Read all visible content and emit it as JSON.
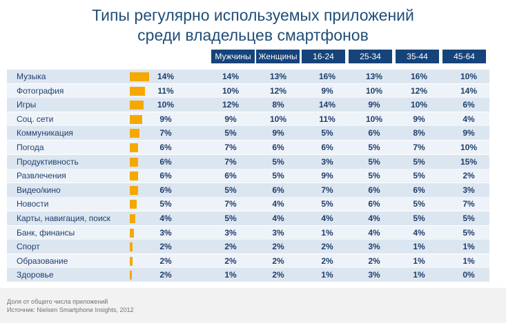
{
  "title_line1": "Типы регулярно используемых приложений",
  "title_line2": "среди владельцев смартфонов",
  "footnote_line1": "Доля от общего числа приложений",
  "footnote_line2": "Источник: Nielsen Smartphone Insights, 2012",
  "colors": {
    "bar": "#f5a800",
    "header": "#16437a",
    "text": "#1f3e6b"
  },
  "chart_data": {
    "type": "table",
    "title": "Типы регулярно используемых приложений среди владельцев смартфонов",
    "columns": [
      "Мужчины",
      "Женщины",
      "16-24",
      "25-34",
      "35-44",
      "45-64"
    ],
    "rows": [
      {
        "category": "Музыка",
        "total": "14%",
        "total_value": 14,
        "values": [
          "14%",
          "13%",
          "16%",
          "13%",
          "16%",
          "10%"
        ]
      },
      {
        "category": "Фотография",
        "total": "11%",
        "total_value": 11,
        "values": [
          "10%",
          "12%",
          "9%",
          "10%",
          "12%",
          "14%"
        ]
      },
      {
        "category": "Игры",
        "total": "10%",
        "total_value": 10,
        "values": [
          "12%",
          "8%",
          "14%",
          "9%",
          "10%",
          "6%"
        ]
      },
      {
        "category": "Соц. сети",
        "total": "9%",
        "total_value": 9,
        "values": [
          "9%",
          "10%",
          "11%",
          "10%",
          "9%",
          "4%"
        ]
      },
      {
        "category": "Коммуникация",
        "total": "7%",
        "total_value": 7,
        "values": [
          "5%",
          "9%",
          "5%",
          "6%",
          "8%",
          "9%"
        ]
      },
      {
        "category": "Погода",
        "total": "6%",
        "total_value": 6,
        "values": [
          "7%",
          "6%",
          "6%",
          "5%",
          "7%",
          "10%"
        ]
      },
      {
        "category": "Продуктивность",
        "total": "6%",
        "total_value": 6,
        "values": [
          "7%",
          "5%",
          "3%",
          "5%",
          "5%",
          "15%"
        ]
      },
      {
        "category": "Развлечения",
        "total": "6%",
        "total_value": 6,
        "values": [
          "6%",
          "5%",
          "9%",
          "5%",
          "5%",
          "2%"
        ]
      },
      {
        "category": "Видео/кино",
        "total": "6%",
        "total_value": 6,
        "values": [
          "5%",
          "6%",
          "7%",
          "6%",
          "6%",
          "3%"
        ]
      },
      {
        "category": "Новости",
        "total": "5%",
        "total_value": 5,
        "values": [
          "7%",
          "4%",
          "5%",
          "6%",
          "5%",
          "7%"
        ]
      },
      {
        "category": "Карты, навигация, поиск",
        "total": "4%",
        "total_value": 4,
        "values": [
          "5%",
          "4%",
          "4%",
          "4%",
          "5%",
          "5%"
        ]
      },
      {
        "category": "Банк, финансы",
        "total": "3%",
        "total_value": 3,
        "values": [
          "3%",
          "3%",
          "1%",
          "4%",
          "4%",
          "5%"
        ]
      },
      {
        "category": "Спорт",
        "total": "2%",
        "total_value": 2,
        "values": [
          "2%",
          "2%",
          "2%",
          "3%",
          "1%",
          "1%"
        ]
      },
      {
        "category": "Образование",
        "total": "2%",
        "total_value": 2,
        "values": [
          "2%",
          "2%",
          "2%",
          "2%",
          "1%",
          "1%"
        ]
      },
      {
        "category": "Здоровье",
        "total": "2%",
        "total_value": 1.5,
        "values": [
          "1%",
          "2%",
          "1%",
          "3%",
          "1%",
          "0%"
        ]
      }
    ]
  }
}
